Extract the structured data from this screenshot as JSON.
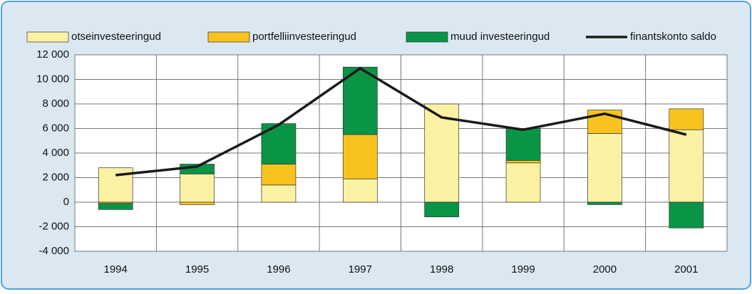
{
  "chart_data": {
    "type": "stacked_bar_line",
    "categories": [
      "1994",
      "1995",
      "1996",
      "1997",
      "1998",
      "1999",
      "2000",
      "2001"
    ],
    "series": [
      {
        "name": "otseinvesteeringud",
        "color": "#fbf1a3",
        "values": [
          2800,
          2300,
          1400,
          1900,
          8000,
          3200,
          5600,
          5900
        ]
      },
      {
        "name": "portfelliinvesteeringud",
        "color": "#f9c31f",
        "values": [
          -100,
          -200,
          1700,
          3600,
          0,
          200,
          1900,
          1700
        ]
      },
      {
        "name": "muud investeeringud",
        "color": "#0a9446",
        "values": [
          -500,
          800,
          3300,
          5500,
          -1200,
          2600,
          -200,
          -2100
        ]
      },
      {
        "name": "finantskonto saldo",
        "color": "#1a1a1a",
        "type": "line",
        "values": [
          2200,
          2900,
          6300,
          10900,
          6900,
          5900,
          7200,
          5500
        ]
      }
    ],
    "ylim": [
      -4000,
      12000
    ],
    "yticks": [
      {
        "value": -4000,
        "label": "-4 000"
      },
      {
        "value": -2000,
        "label": "-2 000"
      },
      0,
      {
        "value": 2000,
        "label": "2 000"
      },
      {
        "value": 4000,
        "label": "4 000"
      },
      {
        "value": 6000,
        "label": "6 000"
      },
      {
        "value": 8000,
        "label": "8 000"
      },
      {
        "value": 10000,
        "label": "10 000"
      },
      {
        "value": 12000,
        "label": "12 000"
      }
    ],
    "grid": true
  }
}
